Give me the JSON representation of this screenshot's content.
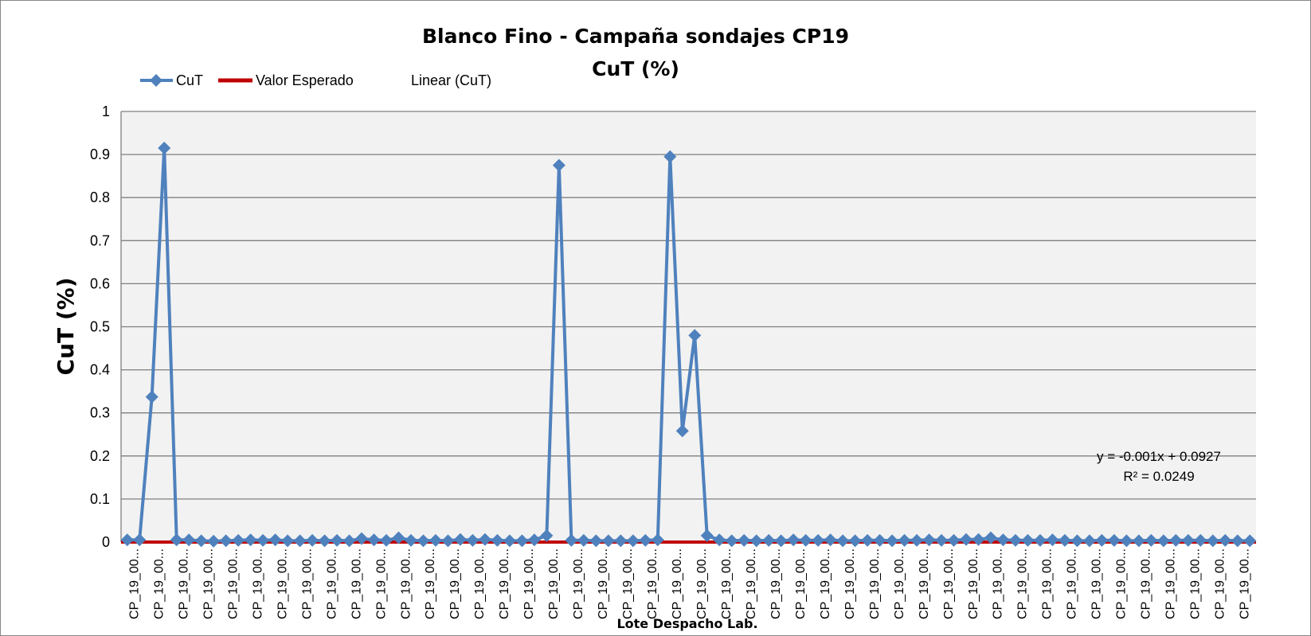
{
  "chart_data": {
    "type": "line",
    "title": "Blanco Fino - Campaña sondajes CP19",
    "subtitle": "CuT (%)",
    "ylabel": "CuT (%)",
    "xlabel": "Lote Despacho Lab.",
    "ylim": [
      0,
      1
    ],
    "yticks": [
      "0",
      "0.1",
      "0.2",
      "0.3",
      "0.4",
      "0.5",
      "0.6",
      "0.7",
      "0.8",
      "0.9",
      "1"
    ],
    "grid": true,
    "legend_position": "top-left",
    "legend": [
      {
        "label": "CuT",
        "color": "#4F81BD",
        "marker": "diamond"
      },
      {
        "label": "Valor Esperado",
        "color": "#C00000",
        "marker": "none"
      },
      {
        "label": "Linear (CuT)",
        "color": "#4F81BD",
        "marker": "none"
      }
    ],
    "x_tick_label": "CP_19_00...",
    "x_tick_count": 46,
    "series": [
      {
        "name": "CuT",
        "color": "#4F81BD",
        "values": [
          0.005,
          0.005,
          0.337,
          0.915,
          0.005,
          0.005,
          0.003,
          0.002,
          0.003,
          0.004,
          0.005,
          0.004,
          0.005,
          0.003,
          0.003,
          0.004,
          0.003,
          0.004,
          0.003,
          0.008,
          0.005,
          0.004,
          0.01,
          0.004,
          0.003,
          0.004,
          0.003,
          0.006,
          0.004,
          0.006,
          0.004,
          0.003,
          0.003,
          0.005,
          0.015,
          0.875,
          0.004,
          0.004,
          0.003,
          0.003,
          0.003,
          0.003,
          0.004,
          0.005,
          0.895,
          0.258,
          0.48,
          0.015,
          0.005,
          0.003,
          0.004,
          0.003,
          0.004,
          0.003,
          0.005,
          0.004,
          0.004,
          0.005,
          0.003,
          0.003,
          0.004,
          0.004,
          0.003,
          0.004,
          0.004,
          0.005,
          0.004,
          0.004,
          0.006,
          0.006,
          0.01,
          0.005,
          0.004,
          0.004,
          0.004,
          0.005,
          0.004,
          0.003,
          0.003,
          0.004,
          0.004,
          0.003,
          0.003,
          0.004,
          0.003,
          0.004,
          0.004,
          0.004,
          0.003,
          0.004,
          0.003,
          0.003
        ]
      },
      {
        "name": "Valor Esperado",
        "color": "#C00000",
        "constant": 0
      }
    ],
    "trendline": {
      "series": "Linear (CuT)",
      "equation": "y = -0.001x + 0.0927",
      "r2": "R² = 0.0249"
    }
  }
}
